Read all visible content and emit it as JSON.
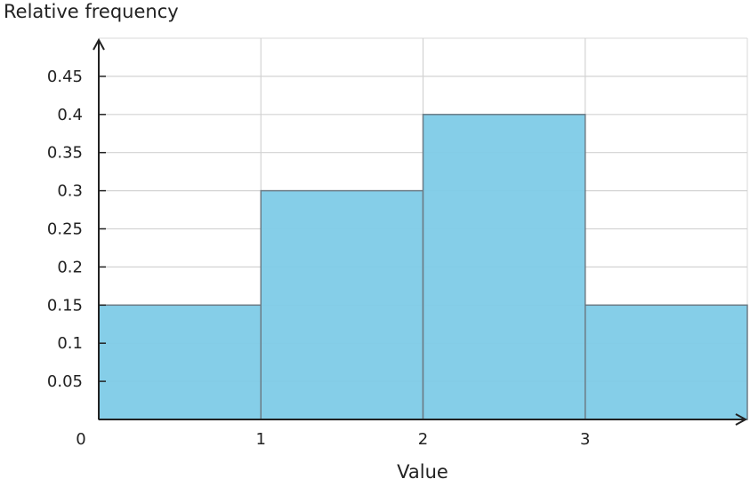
{
  "chart_data": {
    "type": "bar",
    "subtype": "histogram",
    "bins": [
      {
        "start": 0,
        "end": 1,
        "value": 0.15
      },
      {
        "start": 1,
        "end": 2,
        "value": 0.3
      },
      {
        "start": 2,
        "end": 3,
        "value": 0.4
      },
      {
        "start": 3,
        "end": 4,
        "value": 0.15
      }
    ],
    "title": "",
    "xlabel": "Value",
    "ylabel": "Relative frequency",
    "xlim": [
      0,
      4
    ],
    "ylim": [
      0,
      0.5
    ],
    "xticks": [
      "0",
      "1",
      "2",
      "3"
    ],
    "yticks": [
      "0.05",
      "0.1",
      "0.15",
      "0.2",
      "0.25",
      "0.3",
      "0.35",
      "0.4",
      "0.45"
    ],
    "grid": true,
    "bar_color": "#7ecbe7",
    "bar_edge_color": "#6b7b85"
  }
}
